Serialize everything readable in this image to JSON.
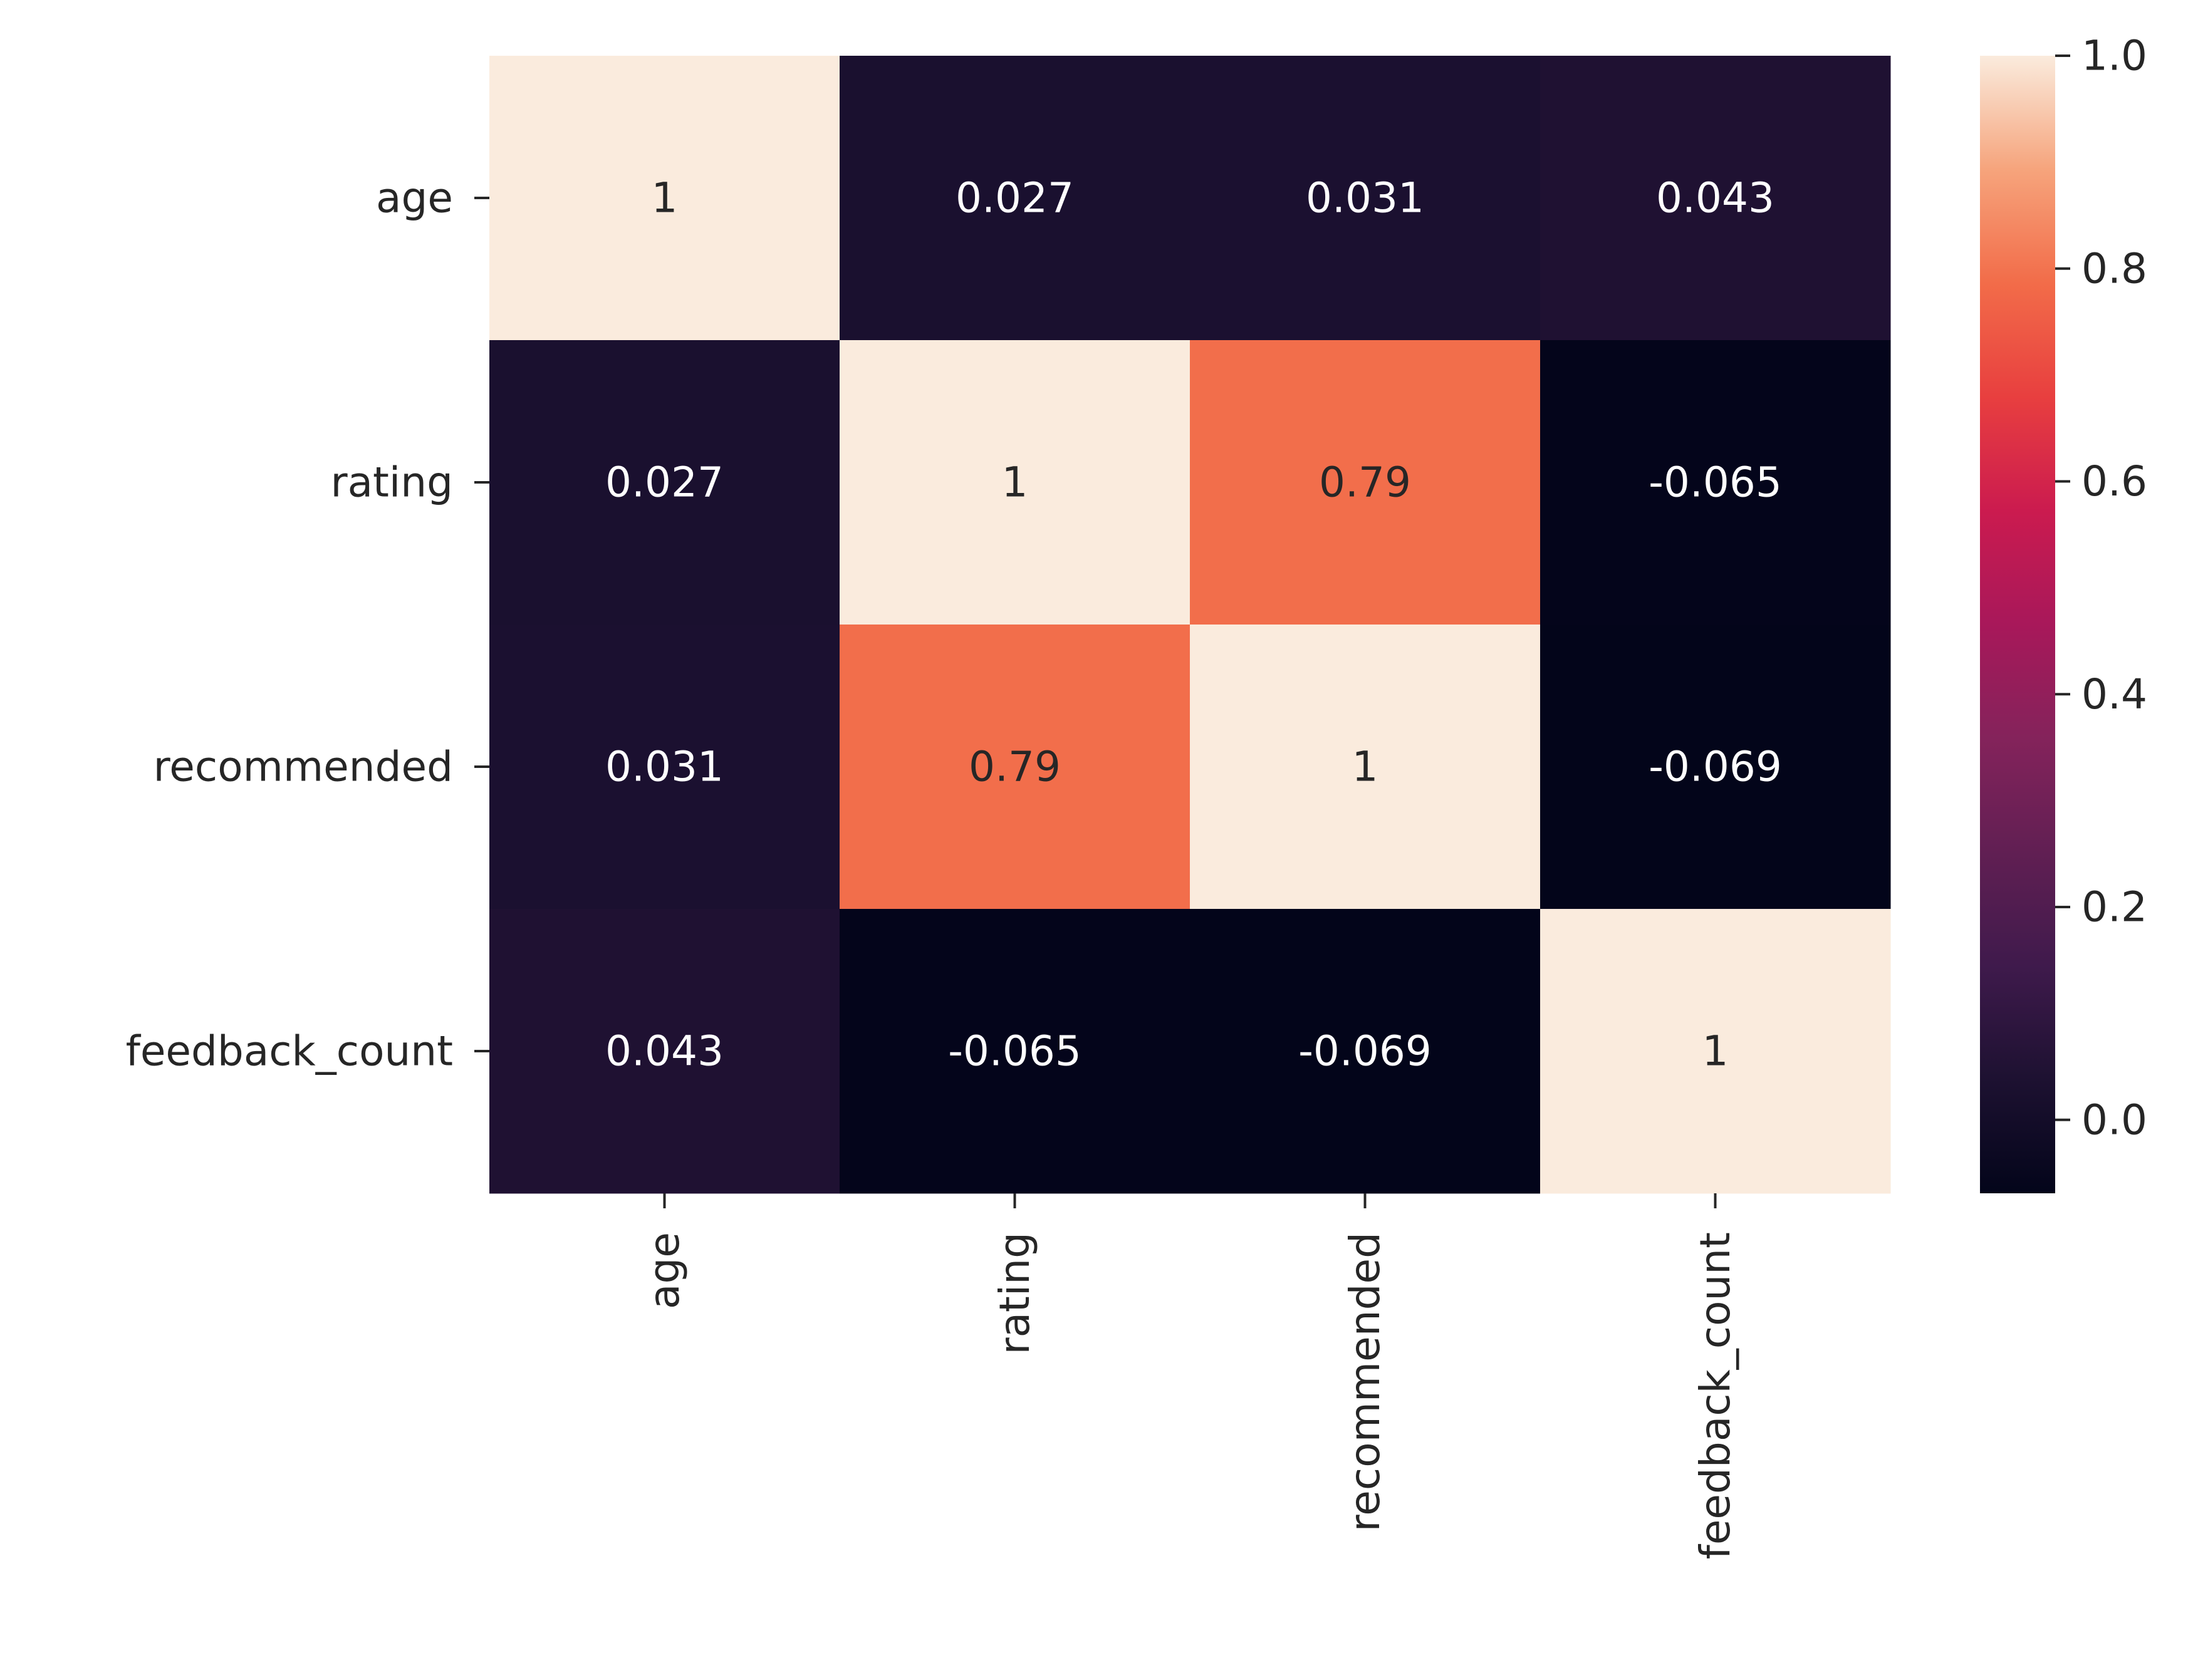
{
  "chart_data": {
    "type": "heatmap",
    "title": "",
    "xlabel": "",
    "ylabel": "",
    "rows": [
      "age",
      "rating",
      "recommended",
      "feedback_count"
    ],
    "columns": [
      "age",
      "rating",
      "recommended",
      "feedback_count"
    ],
    "values": [
      [
        1,
        0.027,
        0.031,
        0.043
      ],
      [
        0.027,
        1,
        0.79,
        -0.065
      ],
      [
        0.031,
        0.79,
        1,
        -0.069
      ],
      [
        0.043,
        -0.065,
        -0.069,
        1
      ]
    ],
    "annotations": [
      [
        "1",
        "0.027",
        "0.031",
        "0.043"
      ],
      [
        "0.027",
        "1",
        "0.79",
        "-0.065"
      ],
      [
        "0.031",
        "0.79",
        "1",
        "-0.069"
      ],
      [
        "0.043",
        "-0.065",
        "-0.069",
        "1"
      ]
    ],
    "colorbar": {
      "colormap": "rocket",
      "vmin": -0.069,
      "vmax": 1.0,
      "ticks": [
        0.0,
        0.2,
        0.4,
        0.6,
        0.8,
        1.0
      ],
      "tick_labels": [
        "0.0",
        "0.2",
        "0.4",
        "0.6",
        "0.8",
        "1.0"
      ],
      "position": "right"
    },
    "x_tick_rotation": "vertical",
    "grid": false
  }
}
